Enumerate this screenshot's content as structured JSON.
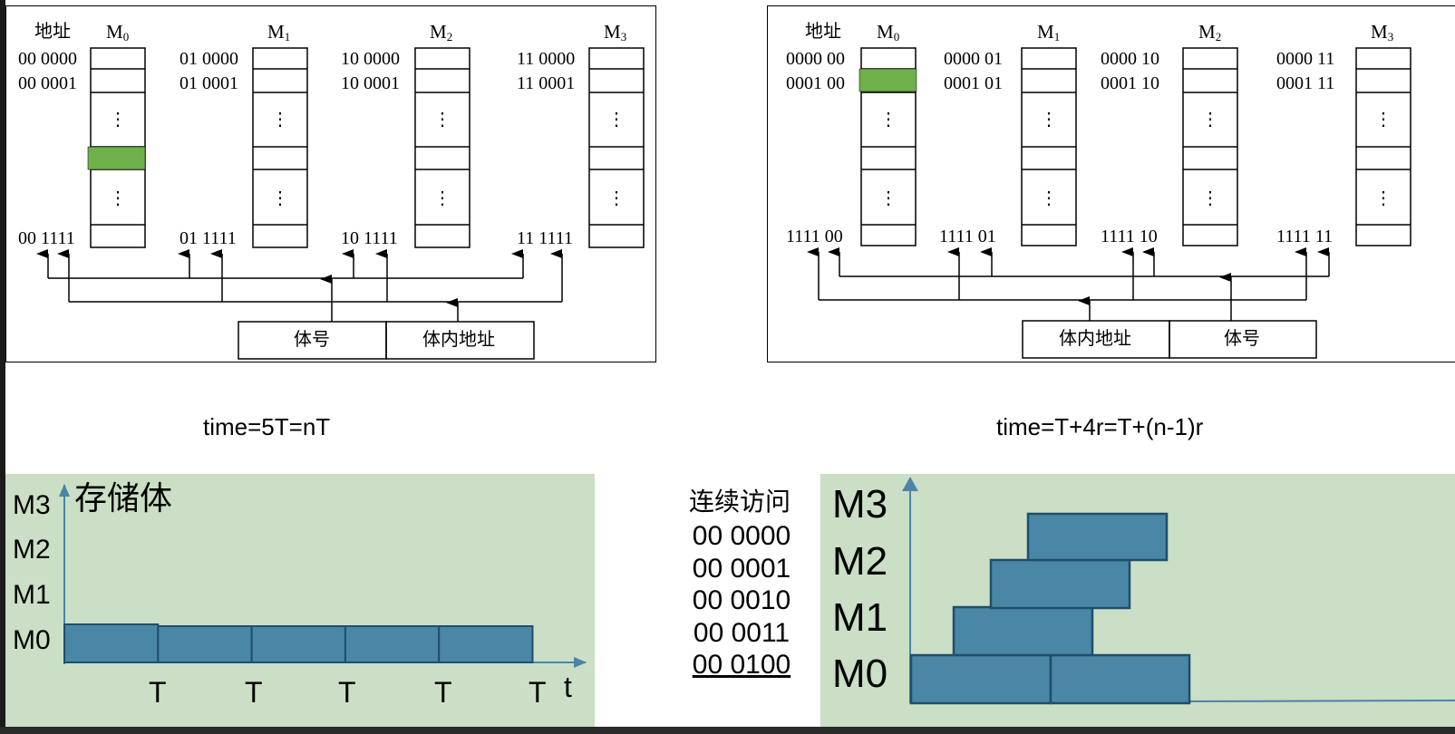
{
  "colors": {
    "highlight": "#6fb04a",
    "timing_bg": "#cadfc5",
    "bar_fill": "#4a86a6",
    "bar_stroke": "#1f4f6b",
    "axis": "#4b84a8"
  },
  "left_diagram": {
    "addr_header": "地址",
    "modules": [
      "M",
      "M",
      "M",
      "M"
    ],
    "module_subs": [
      "0",
      "1",
      "2",
      "3"
    ],
    "addr_top": [
      "00 0000",
      "01 0000",
      "10 0000",
      "11 0000"
    ],
    "addr_second": [
      "00 0001",
      "01 0001",
      "10 0001",
      "11 0001"
    ],
    "addr_last": [
      "00 1111",
      "01 1111",
      "10 1111",
      "11 1111"
    ],
    "ellipsis": "⋮",
    "field_1": "体号",
    "field_2": "体内地址"
  },
  "right_diagram": {
    "addr_header": "地址",
    "modules": [
      "M",
      "M",
      "M",
      "M"
    ],
    "module_subs": [
      "0",
      "1",
      "2",
      "3"
    ],
    "addr_top": [
      "0000 00",
      "0000 01",
      "0000 10",
      "0000 11"
    ],
    "addr_second": [
      "0001 00",
      "0001 01",
      "0001 10",
      "0001 11"
    ],
    "addr_last": [
      "1111 00",
      "1111 01",
      "1111 10",
      "1111 11"
    ],
    "ellipsis": "⋮",
    "field_1": "体内地址",
    "field_2": "体号"
  },
  "formulas": {
    "left": "time=5T=nT",
    "right": "time=T+4r=T+(n-1)r"
  },
  "left_timing": {
    "y_title": "存储体",
    "y_labels": [
      "M3",
      "M2",
      "M1",
      "M0"
    ],
    "x_label": "t",
    "tick_label": "T",
    "bars_on_M0": 5
  },
  "sequence": {
    "title": "连续访问",
    "addresses": [
      "00 0000",
      "00 0001",
      "00 0010",
      "00 0011",
      "00 0100"
    ]
  },
  "right_timing": {
    "y_labels": [
      "M3",
      "M2",
      "M1",
      "M0"
    ]
  }
}
